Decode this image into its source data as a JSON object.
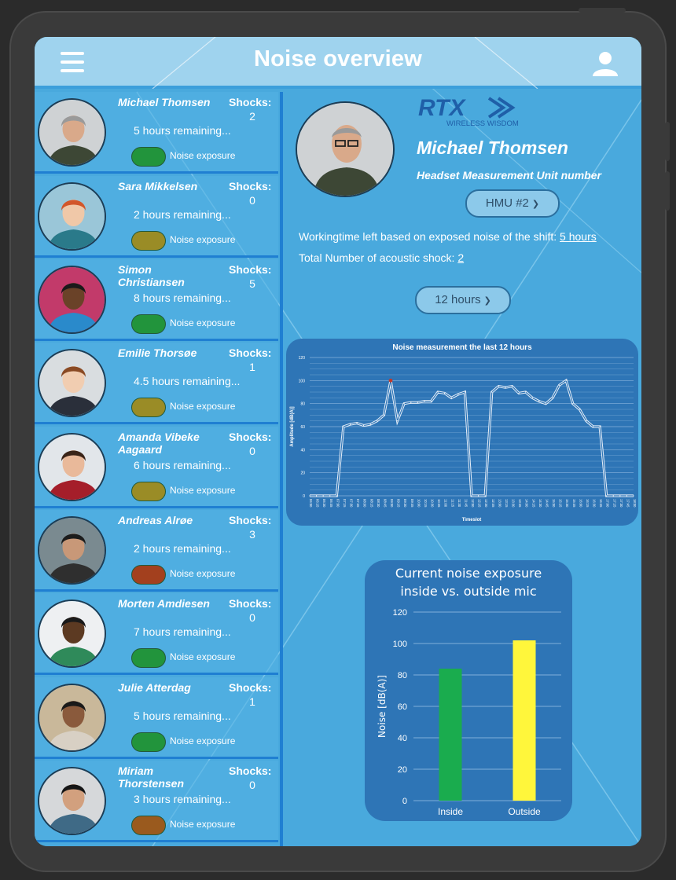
{
  "header": {
    "title": "Noise overview"
  },
  "employees": [
    {
      "name": "Michael Thomsen",
      "shocks_label": "Shocks:",
      "shocks": "2",
      "remaining": "5 hours remaining...",
      "exposure_label": "Noise exposure",
      "status_color": "#22943c"
    },
    {
      "name": "Sara Mikkelsen",
      "shocks_label": "Shocks:",
      "shocks": "0",
      "remaining": "2 hours remaining...",
      "exposure_label": "Noise exposure",
      "status_color": "#9a8c26"
    },
    {
      "name": "Simon Christiansen",
      "shocks_label": "Shocks:",
      "shocks": "5",
      "remaining": "8 hours remaining...",
      "exposure_label": "Noise exposure",
      "status_color": "#22943c"
    },
    {
      "name": "Emilie Thorsøe",
      "shocks_label": "Shocks:",
      "shocks": "1",
      "remaining": "4.5 hours remaining...",
      "exposure_label": "Noise exposure",
      "status_color": "#9a8c26"
    },
    {
      "name": "Amanda Vibeke Aagaard",
      "shocks_label": "Shocks:",
      "shocks": "0",
      "remaining": "6 hours remaining...",
      "exposure_label": "Noise exposure",
      "status_color": "#9a8c26"
    },
    {
      "name": "Andreas Alrøe",
      "shocks_label": "Shocks:",
      "shocks": "3",
      "remaining": "2 hours remaining...",
      "exposure_label": "Noise exposure",
      "status_color": "#a3401e"
    },
    {
      "name": "Morten Amdiesen",
      "shocks_label": "Shocks:",
      "shocks": "0",
      "remaining": "7 hours remaining...",
      "exposure_label": "Noise exposure",
      "status_color": "#22943c"
    },
    {
      "name": "Julie Atterdag",
      "shocks_label": "Shocks:",
      "shocks": "1",
      "remaining": "5 hours remaining...",
      "exposure_label": "Noise exposure",
      "status_color": "#22943c"
    },
    {
      "name": "Miriam Thorstensen",
      "shocks_label": "Shocks:",
      "shocks": "0",
      "remaining": "3 hours remaining...",
      "exposure_label": "Noise exposure",
      "status_color": "#9a5a1e"
    }
  ],
  "logo": {
    "text": "RTX",
    "tagline": "WIRELESS WISDOM",
    "color": "#1f5fa8"
  },
  "detail": {
    "name": "Michael Thomsen",
    "hmu_label": "Headset Measurement Unit number",
    "hmu_selected": "HMU #2",
    "working_time_label": "Workingtime left based on exposed noise of the shift:",
    "working_time_value": "5 hours",
    "shocks_label": "Total Number of acoustic shock:",
    "shocks_value": "2",
    "period_selected": "12 hours"
  },
  "chart_data": [
    {
      "type": "line",
      "title": "Noise measurement the last 12 hours",
      "xlabel": "Timeslot",
      "ylabel": "Amplitude [dB(A)]",
      "ylim": [
        0,
        120
      ],
      "yticks": [
        0,
        20,
        40,
        60,
        80,
        100,
        120
      ],
      "x": [
        "06:00",
        "06:15",
        "06:30",
        "06:45",
        "07:00",
        "07:15",
        "07:30",
        "07:45",
        "08:00",
        "08:15",
        "08:30",
        "08:45",
        "09:00",
        "09:15",
        "09:30",
        "09:45",
        "10:00",
        "10:15",
        "10:30",
        "10:45",
        "11:00",
        "11:15",
        "11:30",
        "11:45",
        "12:00",
        "12:15",
        "12:30",
        "12:45",
        "13:00",
        "13:15",
        "13:30",
        "13:45",
        "14:00",
        "14:15",
        "14:30",
        "14:45",
        "15:00",
        "15:15",
        "15:30",
        "15:45",
        "16:00",
        "16:15",
        "16:30",
        "16:45",
        "17:00",
        "17:15",
        "17:30",
        "17:45",
        "18:00"
      ],
      "values": [
        0,
        0,
        0,
        0,
        0,
        60,
        62,
        63,
        61,
        62,
        65,
        70,
        100,
        65,
        80,
        81,
        81,
        82,
        82,
        90,
        89,
        85,
        88,
        90,
        0,
        0,
        0,
        90,
        95,
        94,
        95,
        89,
        90,
        85,
        82,
        80,
        85,
        96,
        100,
        80,
        75,
        65,
        60,
        60,
        0,
        0,
        0,
        0,
        0
      ],
      "peak_index": 12,
      "line_color": "#ffffff",
      "peak_color": "#c0392b",
      "grid": true
    },
    {
      "type": "bar",
      "title": "Current noise exposure inside vs. outside mic",
      "categories": [
        "Inside",
        "Outside"
      ],
      "values": [
        84,
        102
      ],
      "colors": [
        "#1aac4e",
        "#fff63b"
      ],
      "ylabel": "Noise [dB(A)]",
      "ylim": [
        0,
        120
      ],
      "yticks": [
        0,
        20,
        40,
        60,
        80,
        100,
        120
      ],
      "grid": true
    }
  ]
}
